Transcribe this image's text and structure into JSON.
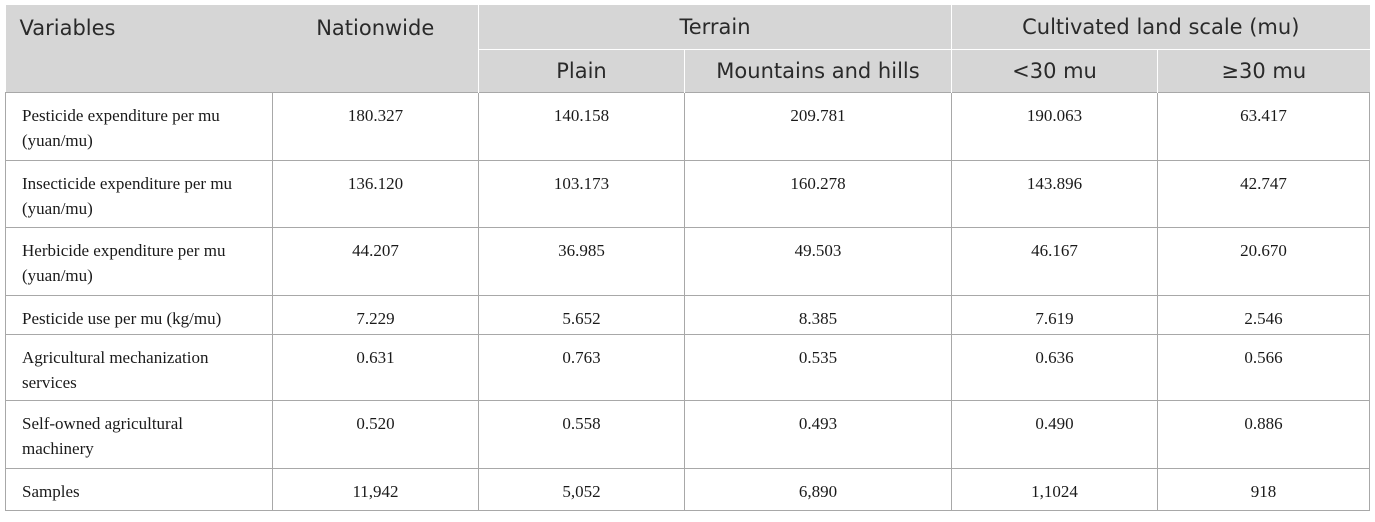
{
  "header": {
    "variables": "Variables",
    "nationwide": "Nationwide",
    "terrain": "Terrain",
    "scale": "Cultivated land scale (mu)",
    "plain": "Plain",
    "mountains": "Mountains and hills",
    "lt30": "<30 mu",
    "ge30": "≥30 mu"
  },
  "rows": [
    {
      "label": "Pesticide expenditure per mu (yuan/mu)",
      "nationwide": "180.327",
      "plain": "140.158",
      "mountains": "209.781",
      "lt30": "190.063",
      "ge30": "63.417"
    },
    {
      "label": "Insecticide expenditure per mu (yuan/mu)",
      "nationwide": "136.120",
      "plain": "103.173",
      "mountains": "160.278",
      "lt30": "143.896",
      "ge30": "42.747"
    },
    {
      "label": "Herbicide expenditure per mu (yuan/mu)",
      "nationwide": "44.207",
      "plain": "36.985",
      "mountains": "49.503",
      "lt30": "46.167",
      "ge30": "20.670"
    },
    {
      "label": "Pesticide use per mu (kg/mu)",
      "nationwide": "7.229",
      "plain": "5.652",
      "mountains": "8.385",
      "lt30": "7.619",
      "ge30": "2.546"
    },
    {
      "label": "Agricultural mechanization services",
      "nationwide": "0.631",
      "plain": "0.763",
      "mountains": "0.535",
      "lt30": "0.636",
      "ge30": "0.566"
    },
    {
      "label": "Self-owned agricultural machinery",
      "nationwide": "0.520",
      "plain": "0.558",
      "mountains": "0.493",
      "lt30": "0.490",
      "ge30": "0.886"
    },
    {
      "label": "Samples",
      "nationwide": "11,942",
      "plain": "5,052",
      "mountains": "6,890",
      "lt30": "1,1024",
      "ge30": "918"
    }
  ]
}
